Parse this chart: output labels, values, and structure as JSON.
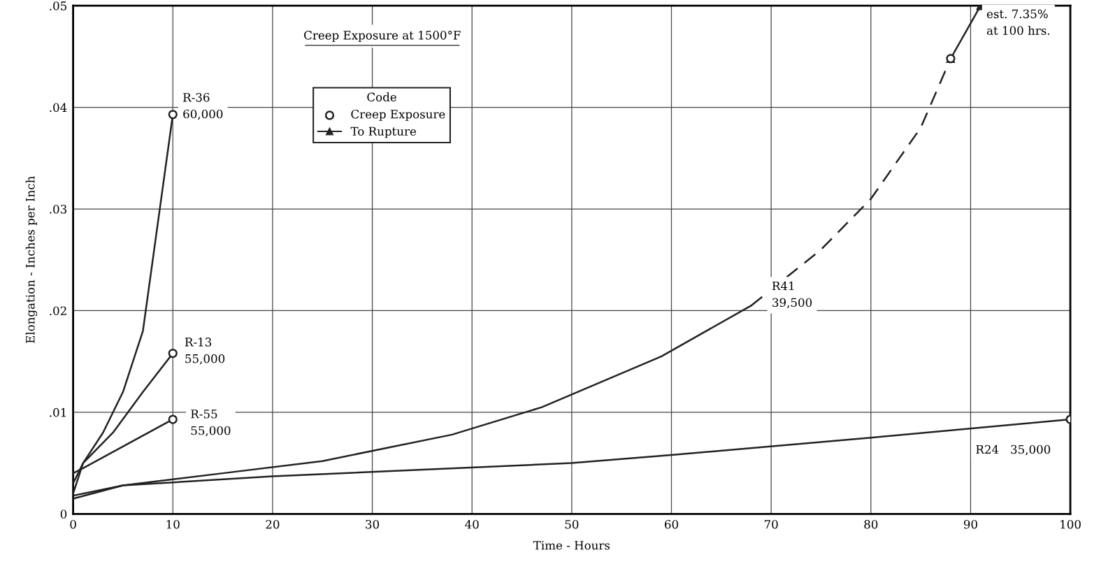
{
  "chart_data": {
    "type": "line",
    "title": "Creep Exposure at 1500°F",
    "xlabel": "Time - Hours",
    "ylabel": "Elongation - Inches per Inch",
    "xlim": [
      0,
      100
    ],
    "xticks": [
      0,
      10,
      20,
      30,
      40,
      50,
      60,
      70,
      80,
      90,
      100
    ],
    "ylim": [
      0,
      0.05
    ],
    "yticks": [
      0,
      {
        "value": 0.01,
        "label": ".01"
      },
      {
        "value": 0.02,
        "label": ".02"
      },
      {
        "value": 0.03,
        "label": ".03"
      },
      {
        "value": 0.04,
        "label": ".04"
      },
      {
        "value": 0.05,
        "label": ".05"
      }
    ],
    "grid": true,
    "legend": "top left",
    "legend_title": "Code",
    "series": [
      {
        "color": "#222222",
        "line_style": "solid",
        "x": [
          0,
          1,
          3,
          5,
          7,
          10
        ],
        "values": [
          0.003,
          0.005,
          0.008,
          0.012,
          0.018,
          0.0393
        ]
      },
      {
        "color": "#222222",
        "line_style": "solid",
        "x": [
          0,
          1,
          4,
          7,
          10
        ],
        "values": [
          0.002,
          0.005,
          0.008,
          0.012,
          0.0158
        ]
      },
      {
        "color": "#222222",
        "line_style": "solid",
        "x": [
          0,
          1,
          10
        ],
        "values": [
          0.004,
          0.0045,
          0.0093
        ]
      },
      {
        "color": "#222222",
        "line_style": "solid",
        "x": [
          0,
          5,
          15,
          25,
          38,
          47,
          59,
          68
        ],
        "values": [
          0.0018,
          0.0028,
          0.004,
          0.0052,
          0.0078,
          0.0105,
          0.0155,
          0.0205
        ]
      },
      {
        "color": "#222222",
        "line_style": "dashed",
        "x": [
          68,
          75,
          80,
          85,
          88
        ],
        "values": [
          0.0205,
          0.026,
          0.031,
          0.038,
          0.0448
        ]
      },
      {
        "color": "#222222",
        "line_style": "solid",
        "x": [
          0,
          5,
          20,
          50,
          60,
          80,
          100
        ],
        "values": [
          0.0015,
          0.0028,
          0.0037,
          0.005,
          0.0058,
          0.0075,
          0.0093
        ]
      },
      {
        "name": "Creep Exposure",
        "type": "scatter",
        "color": "#222222",
        "marker": "circle",
        "x": [
          10,
          10,
          10,
          88,
          100
        ],
        "values": [
          0.0393,
          0.0158,
          0.0093,
          0.0448,
          0.0093
        ]
      },
      {
        "name": "To Rupture",
        "color": "#222222",
        "line_style": "solid",
        "marker": "triangle",
        "x": [
          88,
          91
        ],
        "values": [
          0.0448,
          0.05
        ]
      }
    ],
    "annotations": [
      {
        "text": "R-36\n60,000",
        "x": 10,
        "y": 0.0393
      },
      {
        "text": "R-13\n55,000",
        "x": 10,
        "y": 0.0158
      },
      {
        "text": "R-55\n55,000",
        "x": 10,
        "y": 0.0093
      },
      {
        "text": "R41\n39,500",
        "x": 72,
        "y": 0.024
      },
      {
        "text": "R24   35,000",
        "x": 100,
        "y": 0.0093
      },
      {
        "text": "est. 7.35%\nat 100 hrs.",
        "x": 91,
        "y": 0.05
      }
    ]
  }
}
